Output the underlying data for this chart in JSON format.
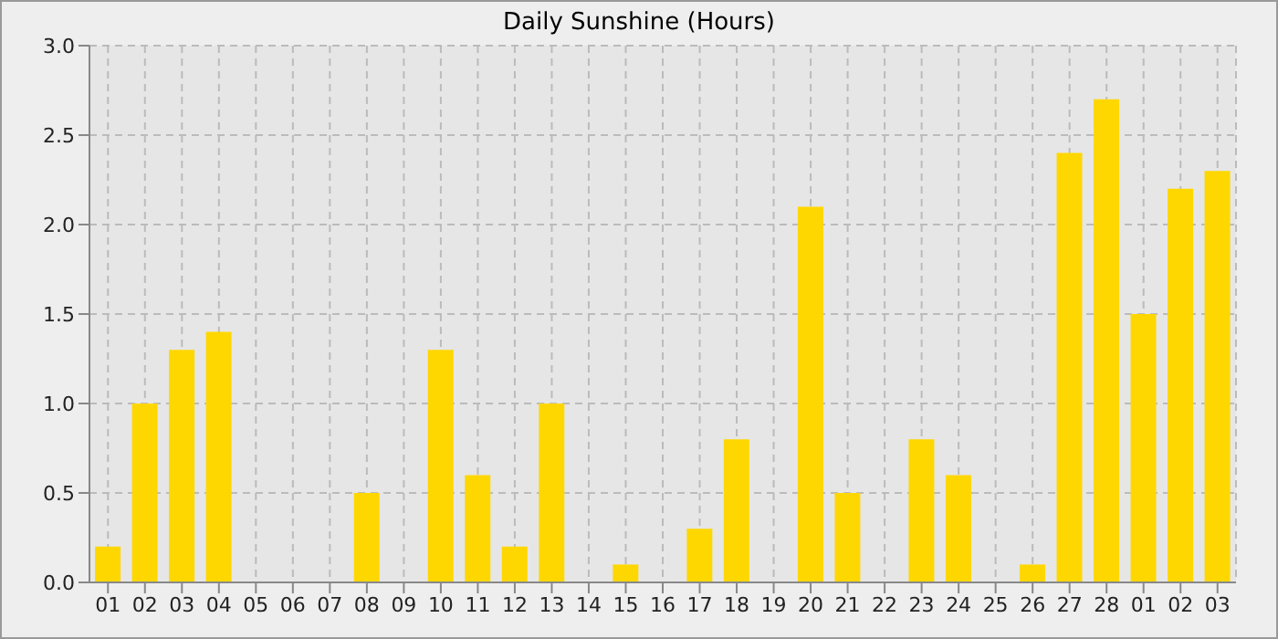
{
  "chart_data": {
    "type": "bar",
    "title": "Daily Sunshine (Hours)",
    "categories": [
      "01",
      "02",
      "03",
      "04",
      "05",
      "06",
      "07",
      "08",
      "09",
      "10",
      "11",
      "12",
      "13",
      "14",
      "15",
      "16",
      "17",
      "18",
      "19",
      "20",
      "21",
      "22",
      "23",
      "24",
      "25",
      "26",
      "27",
      "28",
      "01",
      "02",
      "03"
    ],
    "values": [
      0.2,
      1.0,
      1.3,
      1.4,
      0,
      0,
      0,
      0.5,
      0,
      1.3,
      0.6,
      0.2,
      1.0,
      0,
      0.1,
      0,
      0.3,
      0.8,
      0,
      2.1,
      0.5,
      0,
      0.8,
      0.6,
      0,
      0.1,
      2.4,
      2.7,
      1.5,
      2.2,
      2.3
    ],
    "color": "#ffd700",
    "ylim": [
      0,
      3
    ],
    "yticks": [
      {
        "value": 0,
        "label": "0.0"
      },
      {
        "value": 0.5,
        "label": "0.5"
      },
      {
        "value": 1,
        "label": "1.0"
      },
      {
        "value": 1.5,
        "label": "1.5"
      },
      {
        "value": 2,
        "label": "2.0"
      },
      {
        "value": 2.5,
        "label": "2.5"
      },
      {
        "value": 3,
        "label": "3.0"
      }
    ],
    "grid": true
  }
}
